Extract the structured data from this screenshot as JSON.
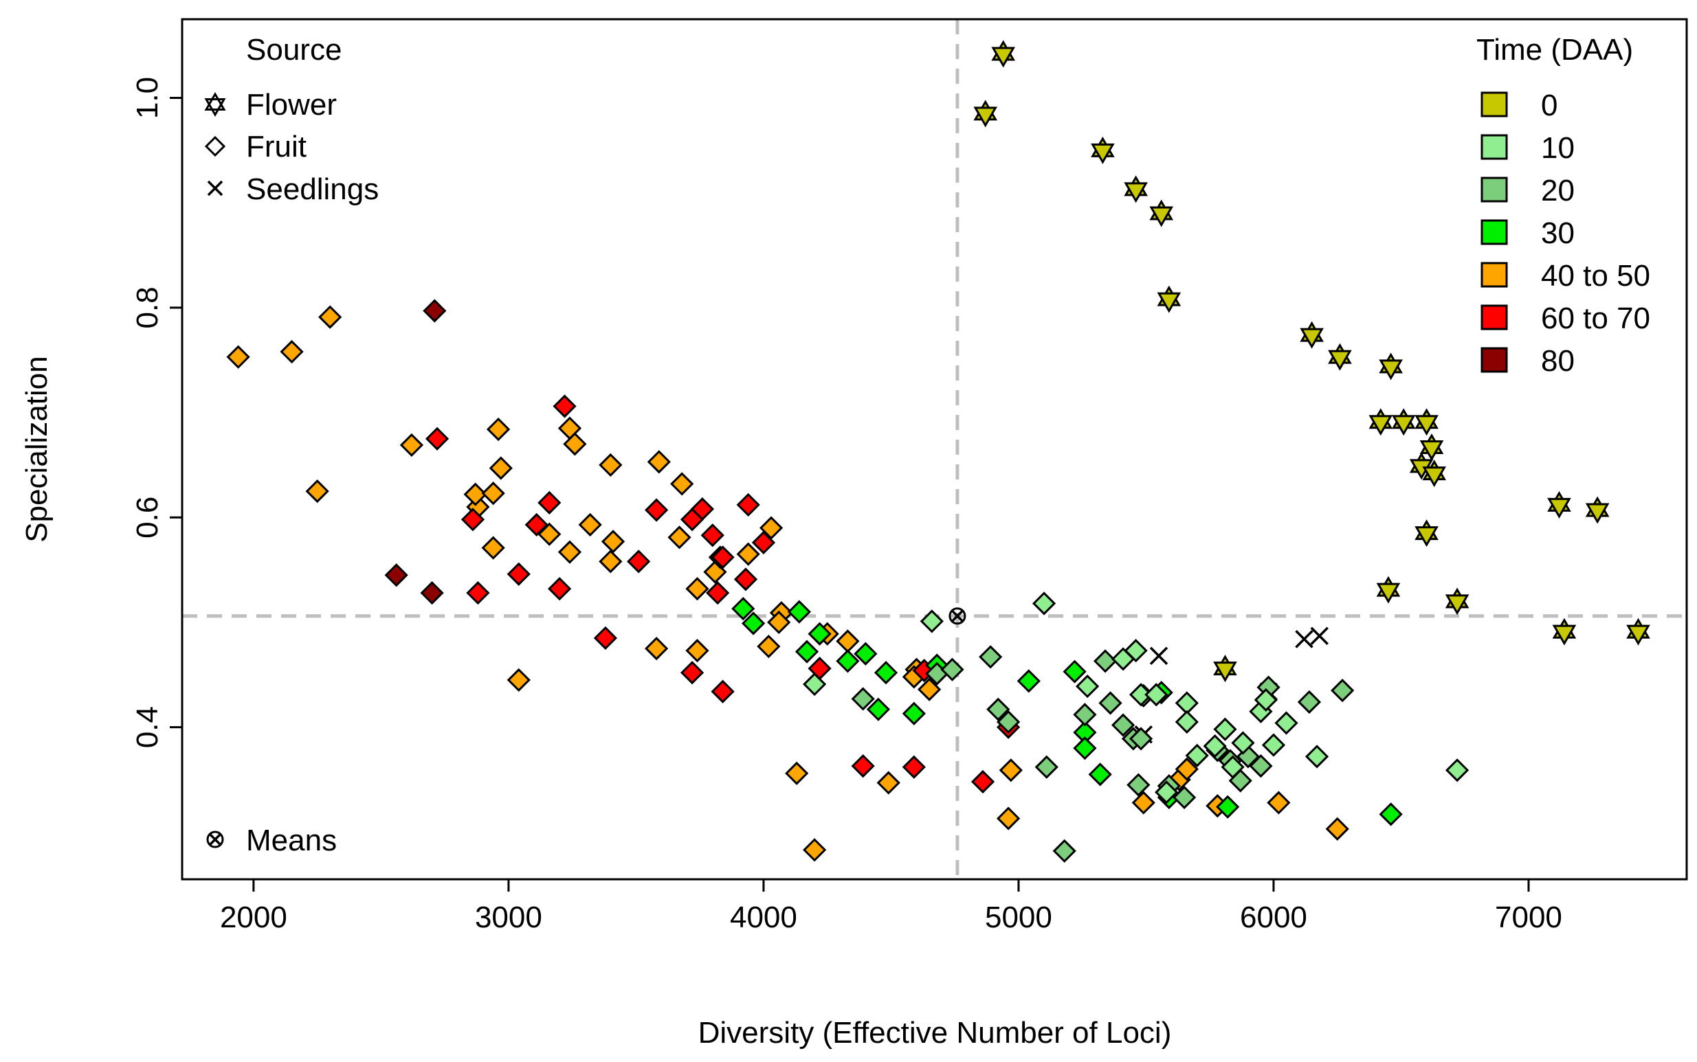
{
  "chart_data": {
    "type": "scatter",
    "xlabel": "Diversity (Effective Number of Loci)",
    "ylabel": "Specialization",
    "xlim": [
      1720,
      7620
    ],
    "ylim": [
      0.255,
      1.075
    ],
    "xticks": [
      2000,
      3000,
      4000,
      5000,
      6000,
      7000
    ],
    "yticks": [
      0.4,
      0.6,
      0.8,
      1.0
    ],
    "ytick_labels": [
      "0.4",
      "0.6",
      "0.8",
      "1.0"
    ],
    "mean_lines": {
      "x": 4760,
      "y": 0.506
    },
    "colors": {
      "0": "#c8c800",
      "10": "#90ee90",
      "20": "#7ccd7c",
      "30": "#00ee00",
      "40to50": "#ffa500",
      "60to70": "#ff0000",
      "80": "#8b0000",
      "guide": "#bebebe"
    },
    "legend_source": {
      "title": "Source",
      "items": [
        {
          "label": "Flower",
          "marker": "flower-star-icon"
        },
        {
          "label": "Fruit",
          "marker": "fruit-diamond-icon"
        },
        {
          "label": "Seedlings",
          "marker": "seedlings-x-icon"
        }
      ],
      "means_label": "Means"
    },
    "legend_time": {
      "title": "Time (DAA)",
      "items": [
        {
          "label": "0",
          "color": "#c8c800"
        },
        {
          "label": "10",
          "color": "#90ee90"
        },
        {
          "label": "20",
          "color": "#7ccd7c"
        },
        {
          "label": "30",
          "color": "#00ee00"
        },
        {
          "label": "40 to 50",
          "color": "#ffa500"
        },
        {
          "label": "60 to 70",
          "color": "#ff0000"
        },
        {
          "label": "80",
          "color": "#8b0000"
        }
      ]
    },
    "means": [
      {
        "x": 4760,
        "y": 0.506
      }
    ],
    "series": [
      {
        "name": "Flower",
        "marker": "star",
        "color_key": "0",
        "points": [
          [
            4940,
            1.042
          ],
          [
            4870,
            0.985
          ],
          [
            5330,
            0.95
          ],
          [
            5460,
            0.913
          ],
          [
            5560,
            0.89
          ],
          [
            5590,
            0.808
          ],
          [
            6150,
            0.774
          ],
          [
            6260,
            0.753
          ],
          [
            6460,
            0.744
          ],
          [
            6420,
            0.691
          ],
          [
            6510,
            0.691
          ],
          [
            6600,
            0.691
          ],
          [
            6620,
            0.667
          ],
          [
            6580,
            0.649
          ],
          [
            6630,
            0.642
          ],
          [
            6600,
            0.585
          ],
          [
            6450,
            0.531
          ],
          [
            6720,
            0.52
          ],
          [
            7120,
            0.612
          ],
          [
            7270,
            0.607
          ],
          [
            7140,
            0.491
          ],
          [
            7430,
            0.491
          ],
          [
            5810,
            0.456
          ]
        ]
      },
      {
        "name": "Seedlings",
        "marker": "x",
        "color_key": "none",
        "points": [
          [
            5550,
            0.468
          ],
          [
            6120,
            0.484
          ],
          [
            6180,
            0.487
          ],
          [
            5490,
            0.393
          ],
          [
            5980,
            0.434
          ],
          [
            5600,
            0.34
          ]
        ]
      },
      {
        "name": "Fruit 80 DAA",
        "marker": "diamond",
        "color_key": "80",
        "points": [
          [
            2710,
            0.797
          ],
          [
            2560,
            0.545
          ],
          [
            2700,
            0.528
          ]
        ]
      },
      {
        "name": "Fruit 40 to 50 DAA",
        "marker": "diamond",
        "color_key": "40to50",
        "points": [
          [
            1940,
            0.753
          ],
          [
            2150,
            0.758
          ],
          [
            2300,
            0.791
          ],
          [
            2250,
            0.625
          ],
          [
            2620,
            0.669
          ],
          [
            2880,
            0.61
          ],
          [
            2870,
            0.622
          ],
          [
            2960,
            0.684
          ],
          [
            2970,
            0.647
          ],
          [
            2940,
            0.623
          ],
          [
            2940,
            0.571
          ],
          [
            3240,
            0.685
          ],
          [
            3260,
            0.67
          ],
          [
            3160,
            0.584
          ],
          [
            3240,
            0.567
          ],
          [
            3320,
            0.593
          ],
          [
            3400,
            0.65
          ],
          [
            3410,
            0.577
          ],
          [
            3400,
            0.558
          ],
          [
            3590,
            0.653
          ],
          [
            3680,
            0.632
          ],
          [
            3670,
            0.581
          ],
          [
            3740,
            0.532
          ],
          [
            3810,
            0.548
          ],
          [
            3830,
            0.562
          ],
          [
            3940,
            0.565
          ],
          [
            4030,
            0.59
          ],
          [
            4070,
            0.509
          ],
          [
            4060,
            0.5
          ],
          [
            4020,
            0.477
          ],
          [
            4250,
            0.489
          ],
          [
            4330,
            0.482
          ],
          [
            3040,
            0.445
          ],
          [
            3580,
            0.475
          ],
          [
            3740,
            0.473
          ],
          [
            4600,
            0.455
          ],
          [
            4590,
            0.448
          ],
          [
            4650,
            0.436
          ],
          [
            4130,
            0.356
          ],
          [
            4490,
            0.347
          ],
          [
            4200,
            0.283
          ],
          [
            4970,
            0.359
          ],
          [
            4960,
            0.313
          ],
          [
            5490,
            0.328
          ],
          [
            5630,
            0.35
          ],
          [
            5660,
            0.36
          ],
          [
            5780,
            0.325
          ],
          [
            6020,
            0.328
          ],
          [
            6250,
            0.303
          ]
        ]
      },
      {
        "name": "Fruit 60 to 70 DAA",
        "marker": "diamond",
        "color_key": "60to70",
        "points": [
          [
            2720,
            0.675
          ],
          [
            3220,
            0.706
          ],
          [
            2860,
            0.598
          ],
          [
            3160,
            0.614
          ],
          [
            3110,
            0.593
          ],
          [
            3580,
            0.607
          ],
          [
            3760,
            0.608
          ],
          [
            3720,
            0.598
          ],
          [
            3800,
            0.583
          ],
          [
            3940,
            0.612
          ],
          [
            4000,
            0.576
          ],
          [
            3510,
            0.558
          ],
          [
            3040,
            0.546
          ],
          [
            2880,
            0.528
          ],
          [
            3200,
            0.532
          ],
          [
            3840,
            0.562
          ],
          [
            3820,
            0.528
          ],
          [
            3930,
            0.541
          ],
          [
            3380,
            0.485
          ],
          [
            3720,
            0.452
          ],
          [
            3840,
            0.434
          ],
          [
            4220,
            0.456
          ],
          [
            4630,
            0.454
          ],
          [
            4390,
            0.363
          ],
          [
            4590,
            0.362
          ],
          [
            4860,
            0.348
          ],
          [
            4960,
            0.4
          ]
        ]
      },
      {
        "name": "Fruit 30 DAA",
        "marker": "diamond",
        "color_key": "30",
        "points": [
          [
            3920,
            0.513
          ],
          [
            3960,
            0.499
          ],
          [
            4140,
            0.51
          ],
          [
            4220,
            0.489
          ],
          [
            4170,
            0.472
          ],
          [
            4330,
            0.463
          ],
          [
            4400,
            0.47
          ],
          [
            4480,
            0.452
          ],
          [
            4450,
            0.417
          ],
          [
            4590,
            0.413
          ],
          [
            4680,
            0.459
          ],
          [
            5040,
            0.444
          ],
          [
            5220,
            0.453
          ],
          [
            5260,
            0.395
          ],
          [
            5260,
            0.38
          ],
          [
            5320,
            0.355
          ],
          [
            5560,
            0.433
          ],
          [
            5590,
            0.333
          ],
          [
            5820,
            0.324
          ],
          [
            6460,
            0.317
          ]
        ]
      },
      {
        "name": "Fruit 20 DAA",
        "marker": "diamond",
        "color_key": "20",
        "points": [
          [
            4390,
            0.427
          ],
          [
            4890,
            0.467
          ],
          [
            4920,
            0.417
          ],
          [
            4960,
            0.405
          ],
          [
            5110,
            0.362
          ],
          [
            5180,
            0.282
          ],
          [
            5260,
            0.412
          ],
          [
            5340,
            0.463
          ],
          [
            5360,
            0.423
          ],
          [
            5410,
            0.402
          ],
          [
            5490,
            0.43
          ],
          [
            5450,
            0.389
          ],
          [
            5480,
            0.389
          ],
          [
            5470,
            0.345
          ],
          [
            5590,
            0.344
          ],
          [
            5650,
            0.333
          ],
          [
            5780,
            0.378
          ],
          [
            5830,
            0.368
          ],
          [
            5870,
            0.349
          ],
          [
            5950,
            0.363
          ],
          [
            5900,
            0.372
          ],
          [
            5980,
            0.438
          ],
          [
            6140,
            0.424
          ],
          [
            6270,
            0.435
          ],
          [
            4680,
            0.451
          ],
          [
            4740,
            0.455
          ]
        ]
      },
      {
        "name": "Fruit 10 DAA",
        "marker": "diamond",
        "color_key": "10",
        "points": [
          [
            4200,
            0.441
          ],
          [
            4660,
            0.501
          ],
          [
            5100,
            0.518
          ],
          [
            5270,
            0.439
          ],
          [
            5410,
            0.465
          ],
          [
            5460,
            0.473
          ],
          [
            5480,
            0.431
          ],
          [
            5540,
            0.431
          ],
          [
            5660,
            0.423
          ],
          [
            5660,
            0.405
          ],
          [
            5700,
            0.373
          ],
          [
            5770,
            0.382
          ],
          [
            5810,
            0.398
          ],
          [
            5840,
            0.362
          ],
          [
            5880,
            0.385
          ],
          [
            5950,
            0.415
          ],
          [
            5970,
            0.426
          ],
          [
            6000,
            0.383
          ],
          [
            6050,
            0.404
          ],
          [
            6170,
            0.372
          ],
          [
            6720,
            0.359
          ],
          [
            5580,
            0.338
          ]
        ]
      }
    ]
  }
}
